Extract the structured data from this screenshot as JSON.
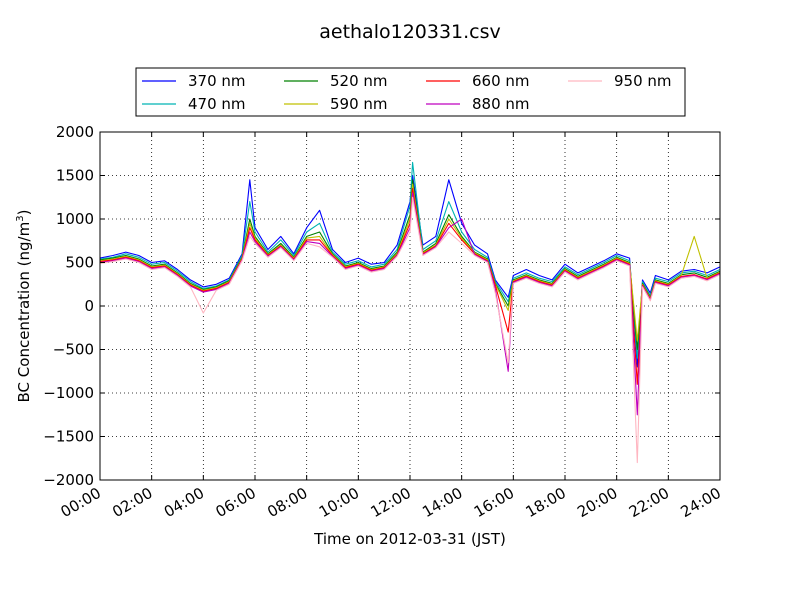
{
  "chart_data": {
    "type": "line",
    "title": "aethalo120331.csv",
    "xlabel": "Time on 2012-03-31 (JST)",
    "ylabel_main": "BC Concentration (ng/m",
    "ylabel_sup": "3",
    "ylabel_end": ")",
    "xlim": [
      "00:00",
      "24:00"
    ],
    "ylim": [
      -2000,
      2000
    ],
    "grid": true,
    "legend_position": "top-center",
    "x_tick_labels": [
      "00:00",
      "02:00",
      "04:00",
      "06:00",
      "08:00",
      "10:00",
      "12:00",
      "14:00",
      "16:00",
      "18:00",
      "20:00",
      "22:00",
      "24:00"
    ],
    "y_tick_labels": [
      "2000",
      "1500",
      "1000",
      "500",
      "0",
      "−500",
      "−1000",
      "−1500",
      "−2000"
    ],
    "x_hours": [
      0,
      0.5,
      1,
      1.5,
      2,
      2.5,
      3,
      3.5,
      4,
      4.5,
      5,
      5.5,
      5.8,
      6,
      6.5,
      7,
      7.5,
      8,
      8.5,
      9,
      9.5,
      10,
      10.5,
      11,
      11.5,
      12,
      12.1,
      12.5,
      13,
      13.5,
      14,
      14.5,
      15,
      15.3,
      15.8,
      16,
      16.5,
      17,
      17.5,
      18,
      18.5,
      19,
      19.5,
      20,
      20.5,
      20.8,
      21,
      21.3,
      21.5,
      22,
      22.5,
      23,
      23.5,
      24
    ],
    "series": [
      {
        "name": "370 nm",
        "color": "#0000ff",
        "values": [
          550,
          580,
          620,
          580,
          500,
          520,
          420,
          300,
          220,
          250,
          320,
          600,
          1450,
          900,
          650,
          800,
          600,
          900,
          1100,
          650,
          500,
          550,
          480,
          500,
          700,
          1200,
          1500,
          700,
          800,
          1450,
          950,
          700,
          600,
          300,
          100,
          350,
          420,
          350,
          300,
          480,
          380,
          450,
          520,
          600,
          550,
          -700,
          300,
          150,
          350,
          300,
          400,
          420,
          380,
          450
        ]
      },
      {
        "name": "470 nm",
        "color": "#00b3b3",
        "values": [
          540,
          560,
          600,
          560,
          480,
          500,
          400,
          280,
          200,
          230,
          300,
          580,
          1200,
          850,
          620,
          760,
          580,
          850,
          950,
          620,
          480,
          520,
          450,
          480,
          650,
          1150,
          1650,
          650,
          750,
          1200,
          850,
          650,
          560,
          280,
          50,
          320,
          380,
          320,
          280,
          450,
          360,
          430,
          500,
          580,
          520,
          -600,
          280,
          120,
          320,
          280,
          380,
          400,
          350,
          420
        ]
      },
      {
        "name": "520 nm",
        "color": "#008000",
        "values": [
          530,
          550,
          580,
          540,
          460,
          480,
          380,
          260,
          190,
          220,
          290,
          560,
          1000,
          800,
          600,
          720,
          560,
          800,
          850,
          600,
          460,
          500,
          430,
          460,
          620,
          1050,
          1450,
          620,
          720,
          1050,
          800,
          620,
          540,
          260,
          0,
          300,
          360,
          300,
          260,
          430,
          340,
          410,
          480,
          560,
          500,
          -500,
          260,
          100,
          300,
          260,
          360,
          380,
          330,
          400
        ]
      },
      {
        "name": "590 nm",
        "color": "#c0c000",
        "values": [
          520,
          540,
          570,
          530,
          450,
          470,
          370,
          250,
          180,
          210,
          280,
          550,
          950,
          780,
          590,
          700,
          550,
          780,
          800,
          590,
          450,
          490,
          420,
          450,
          600,
          1000,
          1400,
          610,
          700,
          1000,
          780,
          610,
          530,
          250,
          -50,
          290,
          350,
          290,
          250,
          420,
          330,
          400,
          470,
          550,
          490,
          -400,
          250,
          90,
          290,
          250,
          350,
          800,
          320,
          390
        ]
      },
      {
        "name": "660 nm",
        "color": "#ff0000",
        "values": [
          510,
          530,
          560,
          520,
          440,
          460,
          360,
          240,
          170,
          200,
          270,
          540,
          900,
          760,
          580,
          690,
          540,
          760,
          760,
          580,
          440,
          480,
          410,
          440,
          590,
          950,
          1350,
          600,
          690,
          950,
          760,
          600,
          520,
          240,
          -300,
          280,
          340,
          280,
          240,
          410,
          320,
          390,
          460,
          540,
          480,
          -900,
          240,
          80,
          280,
          240,
          340,
          360,
          310,
          380
        ]
      },
      {
        "name": "880 nm",
        "color": "#bf00bf",
        "values": [
          500,
          520,
          550,
          510,
          430,
          450,
          350,
          230,
          160,
          190,
          260,
          530,
          850,
          740,
          570,
          680,
          530,
          740,
          720,
          570,
          430,
          470,
          400,
          430,
          580,
          900,
          1300,
          590,
          680,
          900,
          1000,
          590,
          510,
          200,
          -750,
          270,
          330,
          270,
          230,
          400,
          310,
          380,
          450,
          530,
          470,
          -1250,
          230,
          70,
          270,
          230,
          330,
          350,
          300,
          370
        ]
      },
      {
        "name": "950 nm",
        "color": "#ffb6c1",
        "values": [
          490,
          510,
          540,
          500,
          420,
          440,
          340,
          220,
          -80,
          180,
          250,
          520,
          800,
          720,
          560,
          670,
          520,
          720,
          680,
          560,
          420,
          460,
          390,
          420,
          570,
          850,
          1250,
          580,
          670,
          850,
          720,
          580,
          500,
          150,
          -650,
          260,
          320,
          260,
          220,
          390,
          300,
          370,
          440,
          520,
          460,
          -1800,
          220,
          60,
          260,
          220,
          320,
          340,
          290,
          360
        ]
      }
    ]
  }
}
